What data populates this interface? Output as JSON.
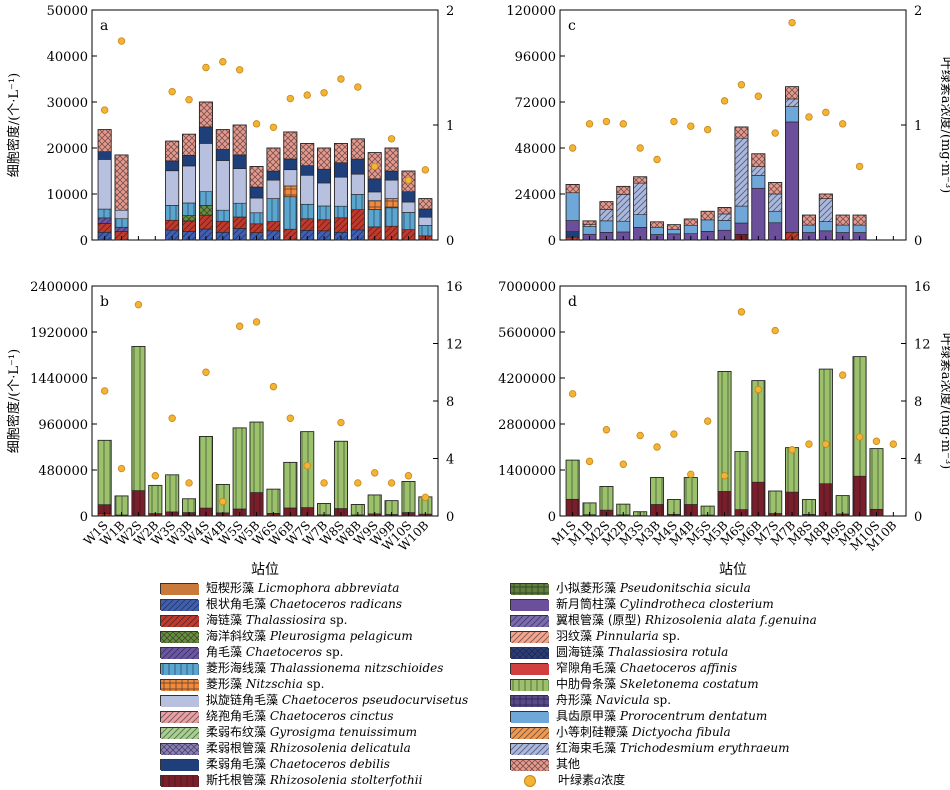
{
  "species": [
    {
      "zh": "短楔形藻",
      "la": "Licmophora abbreviata",
      "sp": "",
      "color": "#c97a3a",
      "pattern": "solid"
    },
    {
      "zh": "根状角毛藻",
      "la": "Chaetoceros radicans",
      "sp": "",
      "color": "#3f5fb0",
      "pattern": "diag"
    },
    {
      "zh": "海链藻",
      "la": "Thalassiosira",
      "sp": " sp.",
      "color": "#c0392b",
      "pattern": "diag"
    },
    {
      "zh": "海洋斜纹藻",
      "la": "Pleurosigma pelagicum",
      "sp": "",
      "color": "#6a8f3c",
      "pattern": "cross"
    },
    {
      "zh": "角毛藻",
      "la": "Chaetoceros",
      "sp": " sp.",
      "color": "#6b56a3",
      "pattern": "diag"
    },
    {
      "zh": "菱形海线藻",
      "la": "Thalassionema nitzschioides",
      "sp": "",
      "color": "#5aa6cf",
      "pattern": "vert"
    },
    {
      "zh": "菱形藻",
      "la": "Nitzschia",
      "sp": " sp.",
      "color": "#f08a3c",
      "pattern": "grid"
    },
    {
      "zh": "拟旋链角毛藻",
      "la": "Chaetoceros pseudocurvisetus",
      "sp": "",
      "color": "#b8c0e0",
      "pattern": "solid"
    },
    {
      "zh": "绕孢角毛藻",
      "la": "Chaetoceros cinctus",
      "sp": "",
      "color": "#e8a0a0",
      "pattern": "diag"
    },
    {
      "zh": "柔弱布纹藻",
      "la": "Gyrosigma tenuissimum",
      "sp": "",
      "color": "#a8d08d",
      "pattern": "diag"
    },
    {
      "zh": "柔弱根管藻",
      "la": "Rhizosolenia delicatula",
      "sp": "",
      "color": "#8a7fb5",
      "pattern": "cross"
    },
    {
      "zh": "柔弱角毛藻",
      "la": "Chaetoceros debilis",
      "sp": "",
      "color": "#1f3f7a",
      "pattern": "solid"
    },
    {
      "zh": "斯托根管藻",
      "la": "Rhizosolenia stolterfothii",
      "sp": "",
      "color": "#7a1f2a",
      "pattern": "vert"
    },
    {
      "zh": "小拟菱形藻",
      "la": "Pseudonitschia sicula",
      "sp": "",
      "color": "#5f7f3a",
      "pattern": "grid"
    },
    {
      "zh": "新月筒柱藻",
      "la": "Cylindrotheca closterium",
      "sp": "",
      "color": "#6b4f9a",
      "pattern": "solid"
    },
    {
      "zh": "翼根管藻 (原型)",
      "la": "Rhizosolenia alata f.genuina",
      "sp": "",
      "color": "#7b6bb0",
      "pattern": "diag"
    },
    {
      "zh": "羽纹藻",
      "la": "Pinnularia",
      "sp": " sp.",
      "color": "#f4a58a",
      "pattern": "diag"
    },
    {
      "zh": "圆海链藻",
      "la": "Thalassiosira rotula",
      "sp": "",
      "color": "#2c3e7a",
      "pattern": "cross"
    },
    {
      "zh": "窄隙角毛藻",
      "la": "Chaetoceros affinis",
      "sp": "",
      "color": "#d04040",
      "pattern": "solid"
    },
    {
      "zh": "中肋骨条藻",
      "la": "Skeletonema costatum",
      "sp": "",
      "color": "#9bc26b",
      "pattern": "vert"
    },
    {
      "zh": "舟形藻",
      "la": "Navicula",
      "sp": " sp.",
      "color": "#5a4a8a",
      "pattern": "grid"
    },
    {
      "zh": "具齿原甲藻",
      "la": "Prorocentrum dentatum",
      "sp": "",
      "color": "#6fa8d8",
      "pattern": "solid"
    },
    {
      "zh": "小等刺硅鞭藻",
      "la": "Dictyocha fibula",
      "sp": "",
      "color": "#f09a50",
      "pattern": "diag"
    },
    {
      "zh": "红海束毛藻",
      "la": "Trichodesmium erythraeum",
      "sp": "",
      "color": "#a9b8dc",
      "pattern": "diag"
    },
    {
      "zh": "其他",
      "la": "",
      "sp": "",
      "color": "#e89a8a",
      "pattern": "cross"
    }
  ],
  "chl_legend": {
    "zh": "叶绿素",
    "la": "a",
    "tail": "浓度"
  },
  "x_title": "站位",
  "y_left_title": "细胞密度/(个·L⁻¹)",
  "y_right_title": "叶绿素a浓度/(mg·m⁻³)",
  "chart_data": [
    {
      "panel": "a",
      "type": "bar",
      "categories": [
        "W1S",
        "W1B",
        "W2S",
        "W2B",
        "W3S",
        "W3B",
        "W4S",
        "W4B",
        "W5S",
        "W5B",
        "W6S",
        "W6B",
        "W7S",
        "W7B",
        "W8S",
        "W8B",
        "W9S",
        "W9B",
        "W10S",
        "W10B"
      ],
      "ylim": [
        0,
        50000
      ],
      "yticks": [
        0,
        10000,
        20000,
        30000,
        40000,
        50000
      ],
      "y2lim": [
        0,
        2
      ],
      "y2ticks": [
        0,
        1,
        2
      ],
      "show_xlabels": false,
      "totals": [
        24000,
        18500,
        0,
        0,
        21500,
        23000,
        30000,
        24000,
        25000,
        16000,
        20000,
        23500,
        21000,
        20000,
        21000,
        22000,
        19000,
        20000,
        15000,
        9000
      ],
      "chl": [
        1.13,
        1.73,
        0,
        0,
        1.29,
        1.22,
        1.5,
        1.55,
        1.48,
        1.01,
        0.98,
        1.23,
        1.26,
        1.28,
        1.4,
        1.33,
        0.64,
        0.88,
        0.52,
        0.61
      ],
      "compositions": [
        {
          "7": 0.45,
          "5": 0.08,
          "11": 0.07,
          "2": 0.08,
          "1": 0.07,
          "4": 0.05,
          "24": 0.2
        },
        {
          "7": 0.1,
          "5": 0.1,
          "2": 0.1,
          "4": 0.05,
          "24": 0.65
        },
        {},
        {},
        {
          "7": 0.35,
          "5": 0.15,
          "11": 0.1,
          "1": 0.1,
          "2": 0.1,
          "24": 0.2
        },
        {
          "7": 0.35,
          "5": 0.12,
          "11": 0.1,
          "3": 0.05,
          "2": 0.1,
          "1": 0.08,
          "24": 0.2
        },
        {
          "7": 0.35,
          "5": 0.1,
          "3": 0.07,
          "11": 0.12,
          "2": 0.1,
          "1": 0.08,
          "24": 0.18
        },
        {
          "7": 0.45,
          "5": 0.1,
          "11": 0.1,
          "2": 0.1,
          "1": 0.07,
          "24": 0.18
        },
        {
          "7": 0.3,
          "5": 0.12,
          "11": 0.12,
          "2": 0.1,
          "1": 0.1,
          "24": 0.26
        },
        {
          "7": 0.2,
          "5": 0.15,
          "11": 0.15,
          "2": 0.12,
          "1": 0.1,
          "24": 0.28
        },
        {
          "7": 0.2,
          "5": 0.25,
          "11": 0.1,
          "2": 0.1,
          "1": 0.1,
          "24": 0.25
        },
        {
          "7": 0.15,
          "5": 0.3,
          "6": 0.1,
          "11": 0.1,
          "2": 0.1,
          "24": 0.25
        },
        {
          "7": 0.3,
          "5": 0.15,
          "11": 0.1,
          "2": 0.12,
          "1": 0.1,
          "24": 0.23
        },
        {
          "7": 0.25,
          "5": 0.15,
          "11": 0.15,
          "2": 0.12,
          "1": 0.1,
          "24": 0.23
        },
        {
          "7": 0.3,
          "5": 0.12,
          "11": 0.15,
          "2": 0.15,
          "1": 0.08,
          "24": 0.2
        },
        {
          "7": 0.2,
          "5": 0.15,
          "11": 0.15,
          "2": 0.2,
          "1": 0.1,
          "24": 0.2
        },
        {
          "7": 0.1,
          "5": 0.2,
          "6": 0.1,
          "11": 0.15,
          "2": 0.15,
          "24": 0.3
        },
        {
          "7": 0.2,
          "5": 0.2,
          "6": 0.1,
          "11": 0.1,
          "2": 0.15,
          "24": 0.25
        },
        {
          "7": 0.15,
          "5": 0.25,
          "11": 0.15,
          "2": 0.15,
          "24": 0.3
        },
        {
          "7": 0.2,
          "5": 0.25,
          "11": 0.2,
          "2": 0.1,
          "24": 0.25
        }
      ]
    },
    {
      "panel": "c",
      "type": "bar",
      "categories": [
        "M1S",
        "M1B",
        "M2S",
        "M2B",
        "M3S",
        "M3B",
        "M4S",
        "M4B",
        "M5S",
        "M5B",
        "M6S",
        "M6B",
        "M7S",
        "M7B",
        "M8S",
        "M8B",
        "M9S",
        "M9B",
        "M10S",
        "M10B"
      ],
      "ylim": [
        0,
        120000
      ],
      "yticks": [
        0,
        24000,
        48000,
        72000,
        96000,
        120000
      ],
      "y2lim": [
        0,
        2
      ],
      "y2ticks": [
        0,
        1,
        2
      ],
      "show_xlabels": false,
      "totals": [
        29000,
        10000,
        20000,
        28000,
        33000,
        9500,
        8000,
        11000,
        15000,
        17000,
        59000,
        45000,
        30000,
        80000,
        13000,
        24000,
        13000,
        13000,
        0,
        0
      ],
      "chl": [
        0.8,
        1.01,
        1.03,
        1.01,
        0.8,
        0.7,
        1.03,
        0.99,
        0.96,
        1.21,
        1.35,
        1.25,
        0.93,
        1.89,
        1.07,
        1.11,
        1.01,
        0.64,
        0,
        0
      ],
      "compositions": [
        {
          "21": 0.5,
          "14": 0.2,
          "11": 0.1,
          "2": 0.05,
          "24": 0.15
        },
        {
          "21": 0.4,
          "14": 0.3,
          "23": 0.1,
          "24": 0.2
        },
        {
          "21": 0.3,
          "14": 0.2,
          "23": 0.3,
          "24": 0.2
        },
        {
          "21": 0.2,
          "14": 0.15,
          "23": 0.5,
          "24": 0.15
        },
        {
          "21": 0.2,
          "14": 0.2,
          "23": 0.5,
          "24": 0.1
        },
        {
          "21": 0.4,
          "14": 0.3,
          "24": 0.3
        },
        {
          "21": 0.3,
          "14": 0.4,
          "24": 0.3
        },
        {
          "21": 0.4,
          "14": 0.3,
          "24": 0.3
        },
        {
          "21": 0.4,
          "14": 0.3,
          "24": 0.3
        },
        {
          "21": 0.3,
          "14": 0.3,
          "23": 0.2,
          "24": 0.2
        },
        {
          "21": 0.15,
          "14": 0.1,
          "23": 0.6,
          "12": 0.05,
          "24": 0.1
        },
        {
          "21": 0.15,
          "14": 0.6,
          "23": 0.1,
          "24": 0.15
        },
        {
          "21": 0.2,
          "14": 0.3,
          "23": 0.3,
          "24": 0.2
        },
        {
          "21": 0.1,
          "14": 0.72,
          "2": 0.05,
          "23": 0.05,
          "24": 0.08
        },
        {
          "21": 0.3,
          "14": 0.3,
          "24": 0.4
        },
        {
          "21": 0.2,
          "14": 0.2,
          "23": 0.5,
          "24": 0.1
        },
        {
          "21": 0.3,
          "14": 0.3,
          "24": 0.4
        },
        {
          "21": 0.3,
          "14": 0.3,
          "24": 0.4
        },
        {},
        {}
      ]
    },
    {
      "panel": "b",
      "type": "bar",
      "categories": [
        "W1S",
        "W1B",
        "W2S",
        "W2B",
        "W3S",
        "W3B",
        "W4S",
        "W4B",
        "W5S",
        "W5B",
        "W6S",
        "W6B",
        "W7S",
        "W7B",
        "W8S",
        "W8B",
        "W9S",
        "W9B",
        "W10S",
        "W10B"
      ],
      "ylim": [
        0,
        2400000
      ],
      "yticks": [
        0,
        480000,
        960000,
        1440000,
        1920000,
        2400000
      ],
      "y2lim": [
        0,
        16
      ],
      "y2ticks": [
        0,
        4,
        8,
        12,
        16
      ],
      "show_xlabels": true,
      "totals": [
        790000,
        210000,
        1770000,
        320000,
        430000,
        180000,
        830000,
        330000,
        920000,
        980000,
        280000,
        560000,
        880000,
        130000,
        780000,
        120000,
        220000,
        160000,
        360000,
        200000
      ],
      "chl": [
        8.7,
        3.3,
        14.7,
        2.8,
        6.8,
        2.3,
        10.0,
        1.0,
        13.2,
        13.5,
        9.0,
        6.8,
        3.5,
        2.3,
        6.5,
        2.3,
        3.0,
        2.3,
        2.8,
        1.3
      ],
      "compositions": [
        {
          "12": 0.12,
          "2": 0.03,
          "19": 0.85
        },
        {
          "12": 0.05,
          "19": 0.95
        },
        {
          "12": 0.15,
          "19": 0.85
        },
        {
          "12": 0.08,
          "19": 0.92
        },
        {
          "12": 0.1,
          "19": 0.9
        },
        {
          "12": 0.15,
          "10": 0.05,
          "19": 0.8
        },
        {
          "12": 0.1,
          "19": 0.9
        },
        {
          "12": 0.1,
          "19": 0.9
        },
        {
          "12": 0.08,
          "19": 0.92
        },
        {
          "12": 0.25,
          "19": 0.75
        },
        {
          "12": 0.1,
          "19": 0.9
        },
        {
          "12": 0.15,
          "19": 0.85
        },
        {
          "12": 0.1,
          "19": 0.9
        },
        {
          "12": 0.1,
          "19": 0.9
        },
        {
          "12": 0.1,
          "19": 0.9
        },
        {
          "12": 0.1,
          "19": 0.9
        },
        {
          "12": 0.1,
          "19": 0.9
        },
        {
          "12": 0.1,
          "19": 0.9
        },
        {
          "12": 0.1,
          "19": 0.9
        },
        {
          "12": 0.1,
          "19": 0.9
        }
      ]
    },
    {
      "panel": "d",
      "type": "bar",
      "categories": [
        "M1S",
        "M1B",
        "M2S",
        "M2B",
        "M3S",
        "M3B",
        "M4S",
        "M4B",
        "M5S",
        "M5B",
        "M6S",
        "M6B",
        "M7S",
        "M7B",
        "M8S",
        "M8B",
        "M9S",
        "M9B",
        "M10S",
        "M10B"
      ],
      "ylim": [
        0,
        7000000
      ],
      "yticks": [
        0,
        1400000,
        2800000,
        4200000,
        5600000,
        7000000
      ],
      "y2lim": [
        0,
        16
      ],
      "y2ticks": [
        0,
        4,
        8,
        12,
        16
      ],
      "show_xlabels": true,
      "totals": [
        1700000,
        400000,
        900000,
        360000,
        130000,
        1170000,
        500000,
        1170000,
        300000,
        4400000,
        1960000,
        4120000,
        760000,
        2080000,
        500000,
        4470000,
        620000,
        4850000,
        2050000,
        0
      ],
      "chl": [
        8.5,
        3.8,
        6.0,
        3.6,
        5.6,
        4.8,
        5.7,
        2.9,
        6.6,
        2.8,
        14.2,
        8.8,
        12.9,
        4.6,
        5.0,
        5.0,
        9.8,
        5.5,
        5.2,
        5.0
      ],
      "compositions": [
        {
          "12": 0.3,
          "19": 0.7
        },
        {
          "12": 0.1,
          "19": 0.9
        },
        {
          "12": 0.2,
          "19": 0.8
        },
        {
          "12": 0.1,
          "19": 0.9
        },
        {
          "12": 0.1,
          "19": 0.9
        },
        {
          "12": 0.3,
          "19": 0.7
        },
        {
          "12": 0.1,
          "19": 0.9
        },
        {
          "12": 0.3,
          "19": 0.7
        },
        {
          "12": 0.1,
          "19": 0.9
        },
        {
          "12": 0.17,
          "19": 0.83
        },
        {
          "12": 0.1,
          "19": 0.9
        },
        {
          "12": 0.25,
          "19": 0.75
        },
        {
          "12": 0.1,
          "19": 0.9
        },
        {
          "12": 0.35,
          "19": 0.65
        },
        {
          "12": 0.1,
          "19": 0.9
        },
        {
          "12": 0.22,
          "19": 0.78
        },
        {
          "12": 0.1,
          "19": 0.9
        },
        {
          "12": 0.25,
          "19": 0.75
        },
        {
          "12": 0.1,
          "19": 0.9
        },
        {}
      ]
    }
  ]
}
